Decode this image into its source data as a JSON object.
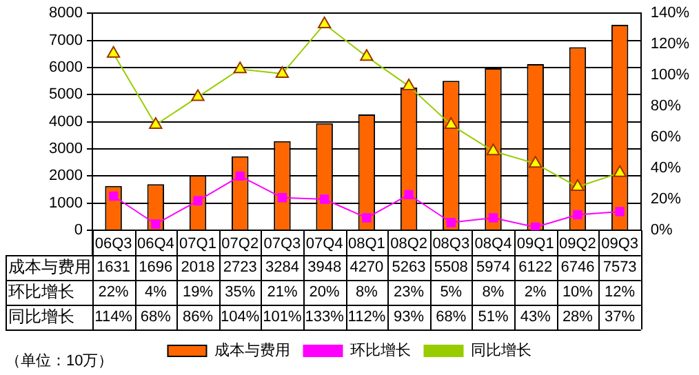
{
  "chart_data": {
    "type": "bar",
    "categories": [
      "06Q3",
      "06Q4",
      "07Q1",
      "07Q2",
      "07Q3",
      "07Q4",
      "08Q1",
      "08Q2",
      "08Q3",
      "08Q4",
      "09Q1",
      "09Q2",
      "09Q3"
    ],
    "series": [
      {
        "name": "成本与费用",
        "color": "#ff6600",
        "values": [
          1631,
          1696,
          2018,
          2723,
          3284,
          3948,
          4270,
          5263,
          5508,
          5974,
          6122,
          6746,
          7573
        ],
        "value_labels": [
          "1631",
          "1696",
          "2018",
          "2723",
          "3284",
          "3948",
          "4270",
          "5263",
          "5508",
          "5974",
          "6122",
          "6746",
          "7573"
        ]
      },
      {
        "name": "环比增长",
        "type": "line",
        "axis": "y2",
        "color": "#ff00ff",
        "marker": "square",
        "values": [
          22,
          4,
          19,
          35,
          21,
          20,
          8,
          23,
          5,
          8,
          2,
          10,
          12
        ],
        "value_labels": [
          "22%",
          "4%",
          "19%",
          "35%",
          "21%",
          "20%",
          "8%",
          "23%",
          "5%",
          "8%",
          "2%",
          "10%",
          "12%"
        ]
      },
      {
        "name": "同比增长",
        "type": "line",
        "axis": "y2",
        "color": "#99cc00",
        "marker": "triangle",
        "values": [
          114,
          68,
          86,
          104,
          101,
          133,
          112,
          93,
          68,
          51,
          43,
          28,
          37
        ],
        "value_labels": [
          "114%",
          "68%",
          "86%",
          "104%",
          "101%",
          "133%",
          "112%",
          "93%",
          "68%",
          "51%",
          "43%",
          "28%",
          "37%"
        ]
      }
    ],
    "ylim": [
      0,
      8000
    ],
    "yticks": [
      0,
      1000,
      2000,
      3000,
      4000,
      5000,
      6000,
      7000,
      8000
    ],
    "y2lim": [
      0,
      140
    ],
    "y2ticks": [
      {
        "value": 0,
        "label": "0%"
      },
      {
        "value": 20,
        "label": "20%"
      },
      {
        "value": 40,
        "label": "40%"
      },
      {
        "value": 60,
        "label": "60%"
      },
      {
        "value": 80,
        "label": "80%"
      },
      {
        "value": 100,
        "label": "100%"
      },
      {
        "value": 120,
        "label": "120%"
      },
      {
        "value": 140,
        "label": "140%"
      }
    ],
    "grid": "y",
    "legend": "bottom",
    "annotations": [
      "（单位：10万）"
    ]
  }
}
